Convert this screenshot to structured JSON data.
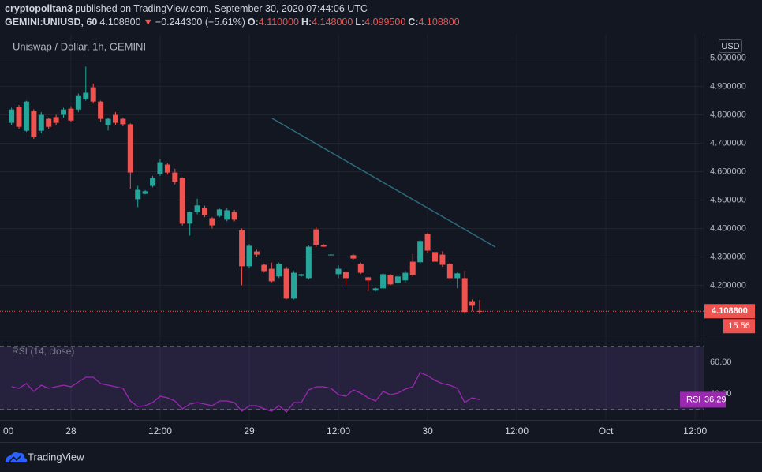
{
  "header": {
    "author": "cryptopolitan3",
    "published": "published on TradingView.com, September 30, 2020 07:44:06 UTC",
    "symbol": "GEMINI:UNIUSD, 60",
    "price": "4.108800",
    "arrow": "▼",
    "change": "−0.244300 (−5.61%)",
    "ohlc": [
      {
        "key": "O:",
        "value": "4.110000"
      },
      {
        "key": "H:",
        "value": "4.148000"
      },
      {
        "key": "L:",
        "value": "4.099500"
      },
      {
        "key": "C:",
        "value": "4.108800"
      }
    ]
  },
  "chart_data": [
    {
      "type": "candlestick",
      "title": "Uniswap / Dollar, 1h, GEMINI",
      "unit": "USD",
      "up_color": "#26a69a",
      "down_color": "#ef5350",
      "grid": true,
      "x": [
        -8,
        -7,
        -6,
        -5,
        -4,
        -3,
        -2,
        -1,
        0,
        1,
        2,
        3,
        4,
        5,
        6,
        7,
        8,
        9,
        10,
        11,
        12,
        13,
        14,
        15,
        16,
        17,
        18,
        19,
        20,
        21,
        22,
        23,
        24,
        25,
        26,
        27,
        28,
        29,
        30,
        31,
        32,
        33,
        34,
        35,
        36,
        37,
        38,
        39,
        40,
        41,
        42,
        43,
        44,
        45,
        46,
        47,
        48,
        49,
        50,
        51,
        52,
        53,
        54,
        55
      ],
      "open": [
        4.772,
        4.828,
        4.744,
        4.814,
        4.744,
        4.786,
        4.792,
        4.8,
        4.822,
        4.819,
        4.856,
        4.897,
        4.847,
        4.764,
        4.8,
        4.786,
        4.767,
        4.503,
        4.522,
        4.55,
        4.592,
        4.625,
        4.597,
        4.578,
        4.417,
        4.458,
        4.472,
        4.436,
        4.444,
        4.431,
        4.458,
        4.394,
        4.267,
        4.319,
        4.272,
        4.258,
        4.231,
        4.258,
        4.153,
        4.233,
        4.225,
        4.397,
        4.342,
        4.306,
        4.239,
        4.247,
        4.306,
        4.275,
        4.228,
        4.181,
        4.189,
        4.236,
        4.208,
        4.217,
        4.283,
        4.281,
        4.381,
        4.317,
        4.308,
        4.275,
        4.225,
        4.225,
        4.144,
        4.11
      ],
      "high": [
        4.825,
        4.835,
        4.85,
        4.82,
        4.81,
        4.79,
        4.8,
        4.825,
        4.83,
        4.875,
        4.97,
        4.91,
        4.85,
        4.79,
        4.81,
        4.79,
        4.77,
        4.55,
        4.535,
        4.585,
        4.645,
        4.63,
        4.61,
        4.58,
        4.46,
        4.505,
        4.48,
        4.44,
        4.47,
        4.47,
        4.465,
        4.4,
        4.345,
        4.325,
        4.275,
        4.28,
        4.28,
        4.265,
        4.25,
        4.24,
        4.34,
        4.405,
        4.345,
        4.31,
        4.27,
        4.25,
        4.31,
        4.28,
        4.23,
        4.192,
        4.242,
        4.24,
        4.235,
        4.25,
        4.31,
        4.36,
        4.385,
        4.325,
        4.32,
        4.28,
        4.245,
        4.25,
        4.15,
        4.148
      ],
      "low": [
        4.765,
        4.75,
        4.74,
        4.715,
        4.735,
        4.75,
        4.765,
        4.79,
        4.775,
        4.81,
        4.85,
        4.84,
        4.775,
        4.745,
        4.765,
        4.76,
        4.54,
        4.475,
        4.52,
        4.545,
        4.585,
        4.59,
        4.555,
        4.41,
        4.375,
        4.45,
        4.44,
        4.4,
        4.44,
        4.425,
        4.425,
        4.2,
        4.26,
        4.3,
        4.245,
        4.21,
        4.225,
        4.15,
        4.15,
        4.23,
        4.22,
        4.335,
        4.335,
        4.305,
        4.225,
        4.2,
        4.29,
        4.24,
        4.18,
        4.178,
        4.185,
        4.2,
        4.205,
        4.21,
        4.23,
        4.275,
        4.315,
        4.275,
        4.265,
        4.22,
        4.19,
        4.1,
        4.11,
        4.0995
      ],
      "close": [
        4.819,
        4.758,
        4.847,
        4.722,
        4.8,
        4.758,
        4.772,
        4.819,
        4.78,
        4.869,
        4.878,
        4.847,
        4.786,
        4.786,
        4.772,
        4.767,
        4.597,
        4.536,
        4.531,
        4.578,
        4.633,
        4.597,
        4.564,
        4.417,
        4.458,
        4.481,
        4.447,
        4.411,
        4.467,
        4.464,
        4.431,
        4.267,
        4.339,
        4.308,
        4.25,
        4.214,
        4.275,
        4.153,
        4.244,
        4.239,
        4.336,
        4.342,
        4.336,
        4.308,
        4.258,
        4.225,
        4.294,
        4.244,
        4.217,
        4.189,
        4.239,
        4.203,
        4.231,
        4.244,
        4.236,
        4.356,
        4.322,
        4.283,
        4.272,
        4.225,
        4.242,
        4.106,
        4.128,
        4.1088
      ],
      "xlim": [
        -9.55,
        85.15
      ],
      "ylim": [
        4.015,
        5.085
      ],
      "yticks": [
        {
          "value": 4.2,
          "label": "4.200000"
        },
        {
          "value": 4.3,
          "label": "4.300000"
        },
        {
          "value": 4.4,
          "label": "4.400000"
        },
        {
          "value": 4.5,
          "label": "4.500000"
        },
        {
          "value": 4.6,
          "label": "4.600000"
        },
        {
          "value": 4.7,
          "label": "4.700000"
        },
        {
          "value": 4.8,
          "label": "4.800000"
        },
        {
          "value": 4.9,
          "label": "4.900000"
        },
        {
          "value": 5,
          "label": "5.000000"
        }
      ],
      "last_price": {
        "value": 4.1088,
        "label": "4.108800"
      },
      "countdown": "15:56"
    },
    {
      "type": "line",
      "title": "RSI (14, close)",
      "grid": true,
      "x": [
        -8,
        -7,
        -6,
        -5,
        -4,
        -3,
        -2,
        -1,
        0,
        1,
        2,
        3,
        4,
        5,
        6,
        7,
        8,
        9,
        10,
        11,
        12,
        13,
        14,
        15,
        16,
        17,
        18,
        19,
        20,
        21,
        22,
        23,
        24,
        25,
        26,
        27,
        28,
        29,
        30,
        31,
        32,
        33,
        34,
        35,
        36,
        37,
        38,
        39,
        40,
        41,
        42,
        43,
        44,
        45,
        46,
        47,
        48,
        49,
        50,
        51,
        52,
        53,
        54,
        55
      ],
      "series": [
        {
          "name": "RSI",
          "color": "#9c27b0",
          "values": [
            44.5,
            43.5,
            46.5,
            41.5,
            45.5,
            43.5,
            44.5,
            45.5,
            44.5,
            47.5,
            50.5,
            50.5,
            46.5,
            45.5,
            44.5,
            43.5,
            35.5,
            32,
            32.5,
            34.5,
            38.5,
            37.5,
            35.5,
            30.5,
            33.5,
            34.5,
            33.5,
            32.5,
            35.5,
            35.5,
            34.5,
            29,
            32.5,
            32.5,
            30.5,
            29,
            32.5,
            28.5,
            34.5,
            34.5,
            42.5,
            44.5,
            44.5,
            43.5,
            39.5,
            38.5,
            42.5,
            40.5,
            37.5,
            35.5,
            41.5,
            39.5,
            40.5,
            43,
            44.5,
            53.5,
            51.5,
            48.5,
            46.5,
            45.5,
            43.5,
            34.5,
            37.5,
            36.29
          ]
        }
      ],
      "bands": [
        30,
        70
      ],
      "xlim": [
        -9.55,
        85.15
      ],
      "ylim": [
        23.5,
        74.5
      ],
      "yticks": [
        {
          "value": 40,
          "label": "40.00"
        },
        {
          "value": 60,
          "label": "60.00"
        }
      ],
      "xticks": [
        {
          "value": -12,
          "label": "00"
        },
        {
          "value": 0,
          "label": "28"
        },
        {
          "value": 12,
          "label": "12:00"
        },
        {
          "value": 24,
          "label": "29"
        },
        {
          "value": 36,
          "label": "12:00"
        },
        {
          "value": 48,
          "label": "30"
        },
        {
          "value": 60,
          "label": "12:00"
        },
        {
          "value": 72,
          "label": "Oct"
        },
        {
          "value": 84,
          "label": "12:00"
        }
      ]
    }
  ],
  "footer": {
    "brand": "TradingView"
  }
}
